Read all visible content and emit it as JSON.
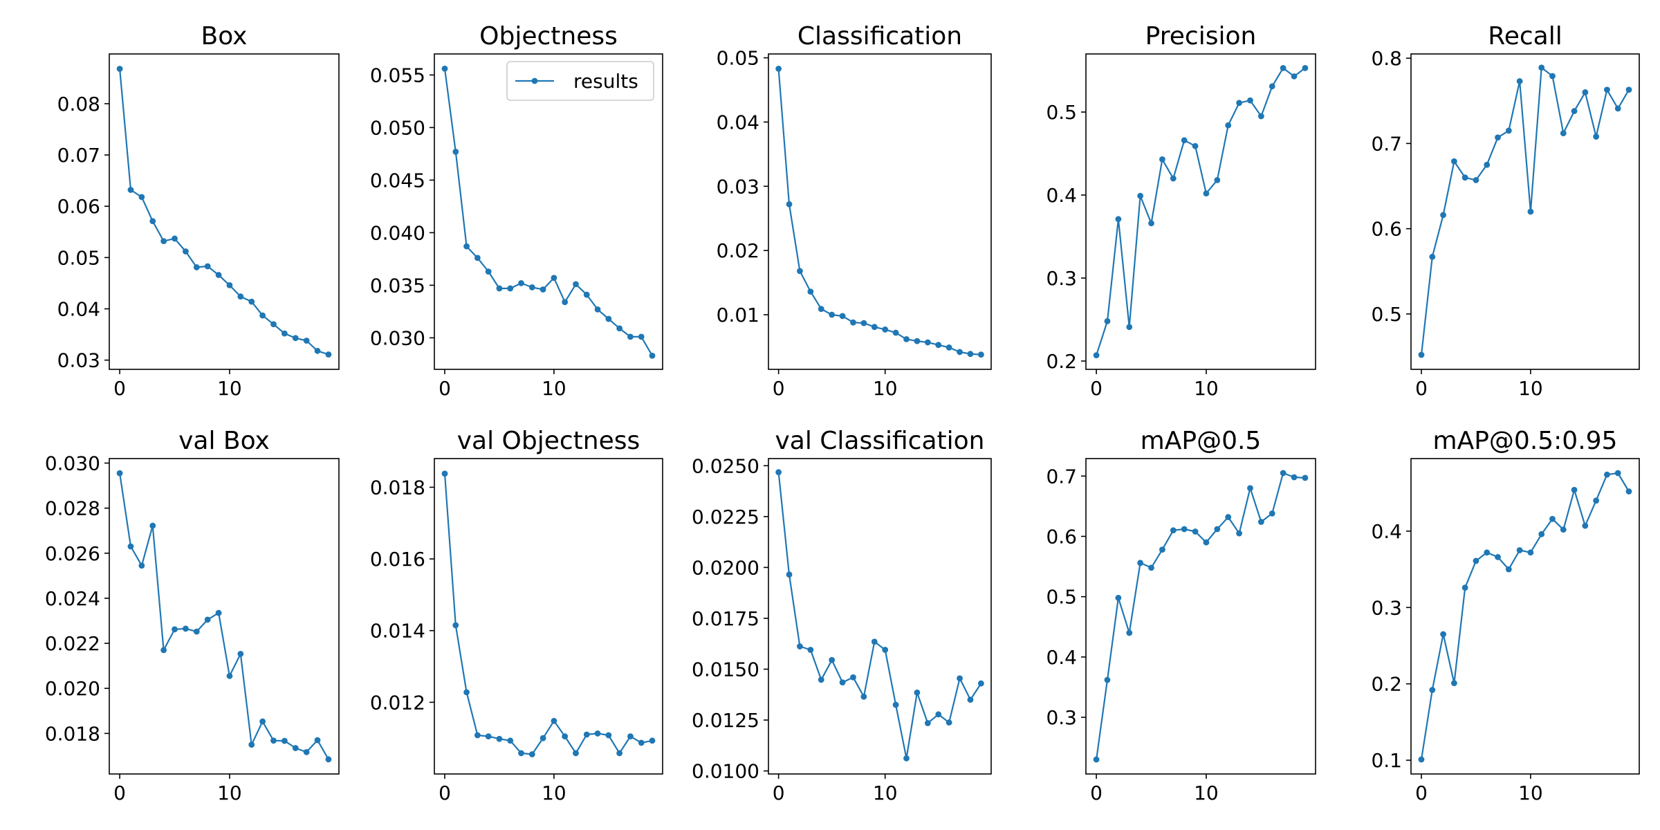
{
  "figure": {
    "legend_label": "results",
    "series_color": "#1f77b4",
    "x_ticks": [
      0,
      10
    ]
  },
  "chart_data": [
    {
      "type": "line",
      "title": "Box",
      "x": [
        0,
        1,
        2,
        3,
        4,
        5,
        6,
        7,
        8,
        9,
        10,
        11,
        12,
        13,
        14,
        15,
        16,
        17,
        18,
        19
      ],
      "series": [
        {
          "name": "results",
          "values": [
            0.0868,
            0.0632,
            0.0618,
            0.0571,
            0.0532,
            0.0537,
            0.0512,
            0.0481,
            0.0483,
            0.0466,
            0.0446,
            0.0424,
            0.0414,
            0.0387,
            0.037,
            0.0352,
            0.0343,
            0.0338,
            0.0318,
            0.0311
          ]
        }
      ],
      "xlim": [
        -0.95,
        19.95
      ],
      "ylim": [
        0.0282,
        0.0897
      ],
      "yticks": [
        0.03,
        0.04,
        0.05,
        0.06,
        0.07,
        0.08
      ],
      "ytick_labels": [
        "0.03",
        "0.04",
        "0.05",
        "0.06",
        "0.07",
        "0.08"
      ]
    },
    {
      "type": "line",
      "title": "Objectness",
      "legend": "top-right",
      "x": [
        0,
        1,
        2,
        3,
        4,
        5,
        6,
        7,
        8,
        9,
        10,
        11,
        12,
        13,
        14,
        15,
        16,
        17,
        18,
        19
      ],
      "series": [
        {
          "name": "results",
          "values": [
            0.0556,
            0.0477,
            0.0387,
            0.0376,
            0.0363,
            0.0347,
            0.0347,
            0.0352,
            0.0348,
            0.0346,
            0.0357,
            0.0334,
            0.0351,
            0.0341,
            0.0327,
            0.0318,
            0.0309,
            0.0301,
            0.0301,
            0.0283
          ]
        }
      ],
      "xlim": [
        -0.95,
        19.95
      ],
      "ylim": [
        0.027,
        0.057
      ],
      "yticks": [
        0.03,
        0.035,
        0.04,
        0.045,
        0.05,
        0.055
      ],
      "ytick_labels": [
        "0.030",
        "0.035",
        "0.040",
        "0.045",
        "0.050",
        "0.055"
      ]
    },
    {
      "type": "line",
      "title": "Classification",
      "x": [
        0,
        1,
        2,
        3,
        4,
        5,
        6,
        7,
        8,
        9,
        10,
        11,
        12,
        13,
        14,
        15,
        16,
        17,
        18,
        19
      ],
      "series": [
        {
          "name": "results",
          "values": [
            0.0483,
            0.0272,
            0.0168,
            0.0136,
            0.0109,
            0.01,
            0.0098,
            0.0088,
            0.0087,
            0.0081,
            0.0077,
            0.0072,
            0.0062,
            0.0059,
            0.0057,
            0.0053,
            0.0049,
            0.0042,
            0.0039,
            0.0038
          ]
        }
      ],
      "xlim": [
        -0.95,
        19.95
      ],
      "ylim": [
        0.0015,
        0.0506
      ],
      "yticks": [
        0.01,
        0.02,
        0.03,
        0.04,
        0.05
      ],
      "ytick_labels": [
        "0.01",
        "0.02",
        "0.03",
        "0.04",
        "0.05"
      ]
    },
    {
      "type": "line",
      "title": "Precision",
      "x": [
        0,
        1,
        2,
        3,
        4,
        5,
        6,
        7,
        8,
        9,
        10,
        11,
        12,
        13,
        14,
        15,
        16,
        17,
        18,
        19
      ],
      "series": [
        {
          "name": "results",
          "values": [
            0.207,
            0.248,
            0.371,
            0.241,
            0.399,
            0.366,
            0.443,
            0.42,
            0.466,
            0.459,
            0.402,
            0.418,
            0.484,
            0.511,
            0.514,
            0.495,
            0.531,
            0.553,
            0.543,
            0.553
          ]
        }
      ],
      "xlim": [
        -0.95,
        19.95
      ],
      "ylim": [
        0.19,
        0.57
      ],
      "yticks": [
        0.2,
        0.3,
        0.4,
        0.5
      ],
      "ytick_labels": [
        "0.2",
        "0.3",
        "0.4",
        "0.5"
      ]
    },
    {
      "type": "line",
      "title": "Recall",
      "x": [
        0,
        1,
        2,
        3,
        4,
        5,
        6,
        7,
        8,
        9,
        10,
        11,
        12,
        13,
        14,
        15,
        16,
        17,
        18,
        19
      ],
      "series": [
        {
          "name": "results",
          "values": [
            0.452,
            0.567,
            0.616,
            0.679,
            0.66,
            0.657,
            0.675,
            0.707,
            0.715,
            0.773,
            0.62,
            0.789,
            0.779,
            0.712,
            0.738,
            0.76,
            0.708,
            0.763,
            0.741,
            0.763
          ]
        }
      ],
      "xlim": [
        -0.95,
        19.95
      ],
      "ylim": [
        0.435,
        0.805
      ],
      "yticks": [
        0.5,
        0.6,
        0.7,
        0.8
      ],
      "ytick_labels": [
        "0.5",
        "0.6",
        "0.7",
        "0.8"
      ]
    },
    {
      "type": "line",
      "title": "val Box",
      "x": [
        0,
        1,
        2,
        3,
        4,
        5,
        6,
        7,
        8,
        9,
        10,
        11,
        12,
        13,
        14,
        15,
        16,
        17,
        18,
        19
      ],
      "series": [
        {
          "name": "results",
          "values": [
            0.02955,
            0.0263,
            0.02545,
            0.02722,
            0.0217,
            0.02262,
            0.02265,
            0.02252,
            0.02305,
            0.02335,
            0.02055,
            0.02153,
            0.0175,
            0.01853,
            0.01768,
            0.01767,
            0.01735,
            0.01717,
            0.0177,
            0.01685
          ]
        }
      ],
      "xlim": [
        -0.95,
        19.95
      ],
      "ylim": [
        0.0162,
        0.0302
      ],
      "yticks": [
        0.018,
        0.02,
        0.022,
        0.024,
        0.026,
        0.028,
        0.03
      ],
      "ytick_labels": [
        "0.018",
        "0.020",
        "0.022",
        "0.024",
        "0.026",
        "0.028",
        "0.030"
      ]
    },
    {
      "type": "line",
      "title": "val Objectness",
      "x": [
        0,
        1,
        2,
        3,
        4,
        5,
        6,
        7,
        8,
        9,
        10,
        11,
        12,
        13,
        14,
        15,
        16,
        17,
        18,
        19
      ],
      "series": [
        {
          "name": "results",
          "values": [
            0.01838,
            0.01415,
            0.01228,
            0.01108,
            0.01105,
            0.01098,
            0.01093,
            0.01058,
            0.01055,
            0.011,
            0.01148,
            0.01105,
            0.01058,
            0.0111,
            0.01113,
            0.01108,
            0.01058,
            0.01105,
            0.01087,
            0.01093
          ]
        }
      ],
      "xlim": [
        -0.95,
        19.95
      ],
      "ylim": [
        0.01,
        0.0188
      ],
      "yticks": [
        0.012,
        0.014,
        0.016,
        0.018
      ],
      "ytick_labels": [
        "0.012",
        "0.014",
        "0.016",
        "0.018"
      ]
    },
    {
      "type": "line",
      "title": "val Classification",
      "x": [
        0,
        1,
        2,
        3,
        4,
        5,
        6,
        7,
        8,
        9,
        10,
        11,
        12,
        13,
        14,
        15,
        16,
        17,
        18,
        19
      ],
      "series": [
        {
          "name": "results",
          "values": [
            0.02468,
            0.01965,
            0.01612,
            0.01595,
            0.01448,
            0.01545,
            0.01435,
            0.0146,
            0.01365,
            0.01635,
            0.01595,
            0.01325,
            0.01062,
            0.01385,
            0.01235,
            0.01278,
            0.01238,
            0.01455,
            0.0135,
            0.0143
          ]
        }
      ],
      "xlim": [
        -0.95,
        19.95
      ],
      "ylim": [
        0.00985,
        0.02535
      ],
      "yticks": [
        0.01,
        0.0125,
        0.015,
        0.0175,
        0.02,
        0.0225,
        0.025
      ],
      "ytick_labels": [
        "0.0100",
        "0.0125",
        "0.0150",
        "0.0175",
        "0.0200",
        "0.0225",
        "0.0250"
      ]
    },
    {
      "type": "line",
      "title": "mAP@0.5",
      "x": [
        0,
        1,
        2,
        3,
        4,
        5,
        6,
        7,
        8,
        9,
        10,
        11,
        12,
        13,
        14,
        15,
        16,
        17,
        18,
        19
      ],
      "series": [
        {
          "name": "results",
          "values": [
            0.23,
            0.362,
            0.498,
            0.44,
            0.556,
            0.548,
            0.578,
            0.61,
            0.612,
            0.608,
            0.59,
            0.612,
            0.632,
            0.605,
            0.68,
            0.624,
            0.638,
            0.705,
            0.698,
            0.697
          ]
        }
      ],
      "xlim": [
        -0.95,
        19.95
      ],
      "ylim": [
        0.206,
        0.729
      ],
      "yticks": [
        0.3,
        0.4,
        0.5,
        0.6,
        0.7
      ],
      "ytick_labels": [
        "0.3",
        "0.4",
        "0.5",
        "0.6",
        "0.7"
      ]
    },
    {
      "type": "line",
      "title": "mAP@0.5:0.95",
      "x": [
        0,
        1,
        2,
        3,
        4,
        5,
        6,
        7,
        8,
        9,
        10,
        11,
        12,
        13,
        14,
        15,
        16,
        17,
        18,
        19
      ],
      "series": [
        {
          "name": "results",
          "values": [
            0.101,
            0.192,
            0.265,
            0.201,
            0.326,
            0.361,
            0.372,
            0.366,
            0.35,
            0.375,
            0.372,
            0.396,
            0.416,
            0.402,
            0.454,
            0.407,
            0.44,
            0.474,
            0.476,
            0.452
          ]
        }
      ],
      "xlim": [
        -0.95,
        19.95
      ],
      "ylim": [
        0.082,
        0.495
      ],
      "yticks": [
        0.1,
        0.2,
        0.3,
        0.4
      ],
      "ytick_labels": [
        "0.1",
        "0.2",
        "0.3",
        "0.4"
      ]
    }
  ]
}
